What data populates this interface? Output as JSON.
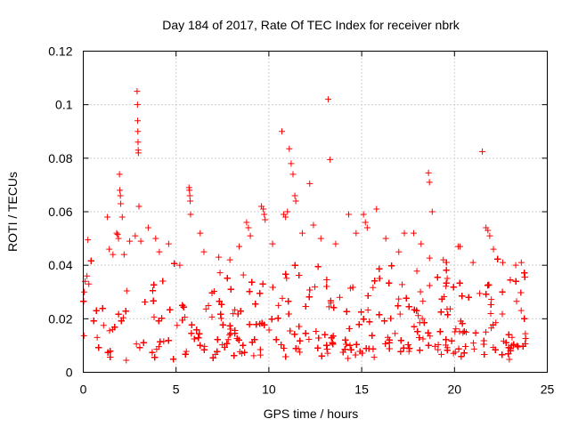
{
  "chart_data": {
    "type": "scatter",
    "title": "Day 184 of 2017, Rate Of TEC Index for receiver nbrk",
    "xlabel": "GPS time / hours",
    "ylabel": "ROTI / TECUs",
    "xlim": [
      0,
      25
    ],
    "ylim": [
      0,
      0.12
    ],
    "x_ticks": [
      0,
      5,
      10,
      15,
      20,
      25
    ],
    "x_tick_labels": [
      "0",
      "5",
      "10",
      "15",
      "20",
      "25"
    ],
    "y_ticks": [
      0,
      0.02,
      0.04,
      0.06,
      0.08,
      0.1,
      0.12
    ],
    "y_tick_labels": [
      "0",
      "0.02",
      "0.04",
      "0.06",
      "0.08",
      "0.1",
      "0.12"
    ],
    "grid": true,
    "marker": "+",
    "marker_color": "#ff0000",
    "series": [
      {
        "name": "ROTI",
        "points": [
          [
            0.05,
            0.03
          ],
          [
            0.1,
            0.034
          ],
          [
            0.2,
            0.036
          ],
          [
            0.3,
            0.033
          ],
          [
            0.25,
            0.0495
          ],
          [
            1.3,
            0.058
          ],
          [
            1.4,
            0.046
          ],
          [
            1.6,
            0.044
          ],
          [
            1.8,
            0.052
          ],
          [
            1.85,
            0.0515
          ],
          [
            1.9,
            0.05
          ],
          [
            1.95,
            0.074
          ],
          [
            1.97,
            0.068
          ],
          [
            2.0,
            0.066
          ],
          [
            2.02,
            0.063
          ],
          [
            2.1,
            0.058
          ],
          [
            2.2,
            0.044
          ],
          [
            2.5,
            0.049
          ],
          [
            2.8,
            0.051
          ],
          [
            2.9,
            0.105
          ],
          [
            2.92,
            0.1
          ],
          [
            2.93,
            0.094
          ],
          [
            2.94,
            0.09
          ],
          [
            2.95,
            0.086
          ],
          [
            2.96,
            0.083
          ],
          [
            2.97,
            0.082
          ],
          [
            3.0,
            0.062
          ],
          [
            3.1,
            0.049
          ],
          [
            3.5,
            0.054
          ],
          [
            3.9,
            0.05
          ],
          [
            4.1,
            0.045
          ],
          [
            4.6,
            0.048
          ],
          [
            5.2,
            0.04
          ],
          [
            5.7,
            0.069
          ],
          [
            5.72,
            0.068
          ],
          [
            5.74,
            0.066
          ],
          [
            5.76,
            0.064
          ],
          [
            5.78,
            0.059
          ],
          [
            6.3,
            0.052
          ],
          [
            6.5,
            0.045
          ],
          [
            7.3,
            0.043
          ],
          [
            7.9,
            0.042
          ],
          [
            8.4,
            0.047
          ],
          [
            8.8,
            0.056
          ],
          [
            8.9,
            0.054
          ],
          [
            9.0,
            0.051
          ],
          [
            9.6,
            0.062
          ],
          [
            9.7,
            0.061
          ],
          [
            9.75,
            0.059
          ],
          [
            9.8,
            0.057
          ],
          [
            10.2,
            0.048
          ],
          [
            10.7,
            0.09
          ],
          [
            10.8,
            0.059
          ],
          [
            10.9,
            0.058
          ],
          [
            11.0,
            0.06
          ],
          [
            11.1,
            0.0835
          ],
          [
            11.2,
            0.078
          ],
          [
            11.3,
            0.074
          ],
          [
            11.4,
            0.066
          ],
          [
            11.45,
            0.064
          ],
          [
            11.8,
            0.052
          ],
          [
            12.2,
            0.0705
          ],
          [
            12.4,
            0.055
          ],
          [
            12.8,
            0.05
          ],
          [
            13.2,
            0.102
          ],
          [
            13.3,
            0.0795
          ],
          [
            13.6,
            0.048
          ],
          [
            14.3,
            0.059
          ],
          [
            14.7,
            0.052
          ],
          [
            15.1,
            0.059
          ],
          [
            15.2,
            0.056
          ],
          [
            15.3,
            0.054
          ],
          [
            15.8,
            0.061
          ],
          [
            16.3,
            0.05
          ],
          [
            17.0,
            0.045
          ],
          [
            17.3,
            0.052
          ],
          [
            17.8,
            0.052
          ],
          [
            18.2,
            0.048
          ],
          [
            18.6,
            0.0745
          ],
          [
            18.65,
            0.071
          ],
          [
            18.8,
            0.06
          ],
          [
            19.4,
            0.042
          ],
          [
            20.2,
            0.047
          ],
          [
            20.3,
            0.047
          ],
          [
            21.0,
            0.041
          ],
          [
            21.5,
            0.0825
          ],
          [
            21.7,
            0.054
          ],
          [
            21.8,
            0.053
          ],
          [
            21.9,
            0.051
          ],
          [
            22.1,
            0.046
          ],
          [
            22.6,
            0.041
          ],
          [
            23.3,
            0.04
          ],
          [
            23.6,
            0.041
          ]
        ],
        "generated_cloud": {
          "description": "dense noisy cloud of ROTI samples",
          "x_range": [
            0,
            23.9
          ],
          "typical_min": 0.004,
          "typical_max": 0.03
        }
      }
    ]
  }
}
